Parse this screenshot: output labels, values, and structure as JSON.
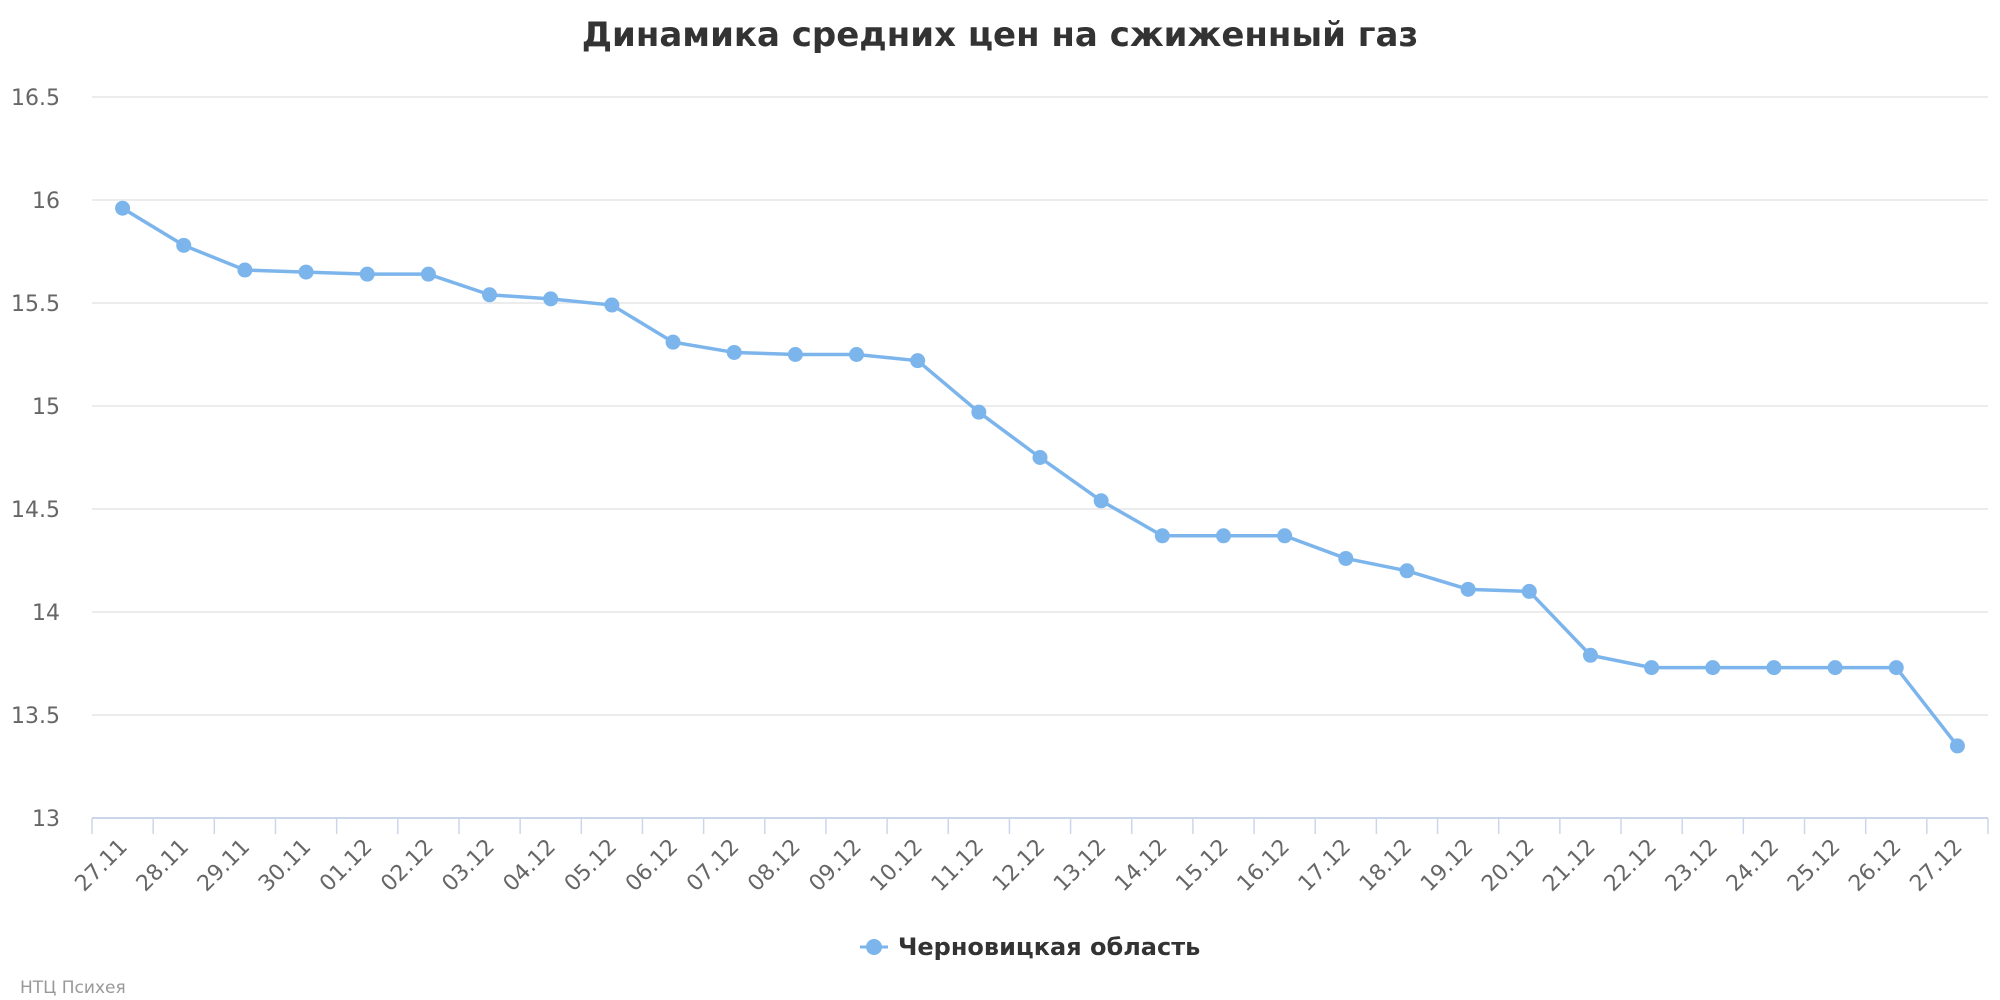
{
  "chart_data": {
    "type": "line",
    "title": "Динамика средних цен на сжиженный газ",
    "categories": [
      "27.11",
      "28.11",
      "29.11",
      "30.11",
      "01.12",
      "02.12",
      "03.12",
      "04.12",
      "05.12",
      "06.12",
      "07.12",
      "08.12",
      "09.12",
      "10.12",
      "11.12",
      "12.12",
      "13.12",
      "14.12",
      "15.12",
      "16.12",
      "17.12",
      "18.12",
      "19.12",
      "20.12",
      "21.12",
      "22.12",
      "23.12",
      "24.12",
      "25.12",
      "26.12",
      "27.12"
    ],
    "series": [
      {
        "name": "Черновицкая область",
        "color": "#7cb5ec",
        "values": [
          15.96,
          15.78,
          15.66,
          15.65,
          15.64,
          15.64,
          15.54,
          15.52,
          15.49,
          15.31,
          15.26,
          15.25,
          15.25,
          15.22,
          14.97,
          14.75,
          14.54,
          14.37,
          14.37,
          14.37,
          14.26,
          14.2,
          14.11,
          14.1,
          13.79,
          13.73,
          13.73,
          13.73,
          13.73,
          13.73,
          13.35
        ]
      }
    ],
    "yticks": [
      "13",
      "13.5",
      "14",
      "14.5",
      "15",
      "15.5",
      "16",
      "16.5"
    ],
    "ylim": [
      13,
      16.5
    ],
    "grid": true,
    "legend": "bottom-center"
  },
  "credit": "НТЦ Психея"
}
